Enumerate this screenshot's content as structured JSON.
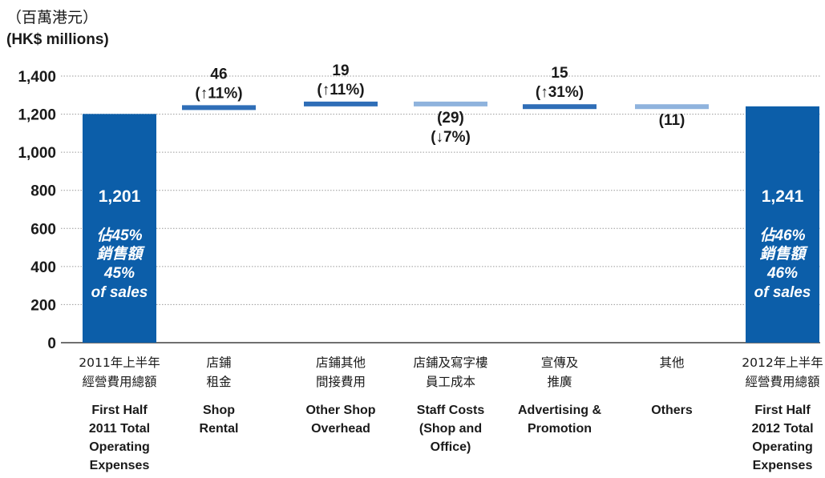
{
  "unit_label_zh": "（百萬港元）",
  "unit_label_en": "(HK$ millions)",
  "colors": {
    "total": "#0c5ea9",
    "increase": "#2f6eb7",
    "decrease": "#8fb3dd",
    "text_on_bar": "#ffffff"
  },
  "chart_data": {
    "type": "bar",
    "subtype": "waterfall",
    "ylim": [
      0,
      1400
    ],
    "yticks": [
      0,
      200,
      400,
      600,
      800,
      1000,
      1200,
      1400
    ],
    "ytick_labels": [
      "0",
      "200",
      "400",
      "600",
      "800",
      "1,000",
      "1,200",
      "1,400"
    ],
    "grid": true,
    "bars": [
      {
        "kind": "total",
        "value": 1201,
        "value_label": "1,201",
        "inbar_lines": [
          "佔45%",
          "銷售額",
          "45%",
          "of sales"
        ],
        "label_zh": [
          "2011年上半年",
          "經營費用總額"
        ],
        "label_en": [
          "First Half",
          "2011 Total",
          "Operating",
          "Expenses"
        ]
      },
      {
        "kind": "increase",
        "value": 46,
        "delta_lines": [
          "46",
          "(↑11%)"
        ],
        "label_zh": [
          "店鋪",
          "租金"
        ],
        "label_en": [
          "Shop",
          "Rental"
        ]
      },
      {
        "kind": "increase",
        "value": 19,
        "delta_lines": [
          "19",
          "(↑11%)"
        ],
        "label_zh": [
          "店鋪其他",
          "間接費用"
        ],
        "label_en": [
          "Other Shop",
          "Overhead"
        ]
      },
      {
        "kind": "decrease",
        "value": -29,
        "delta_lines": [
          "(29)",
          "(↓7%)"
        ],
        "label_zh": [
          "店鋪及寫字樓",
          "員工成本"
        ],
        "label_en": [
          "Staff Costs",
          "(Shop and",
          "Office)"
        ]
      },
      {
        "kind": "increase",
        "value": 15,
        "delta_lines": [
          "15",
          "(↑31%)"
        ],
        "label_zh": [
          "宣傳及",
          "推廣"
        ],
        "label_en": [
          "Advertising &",
          "Promotion"
        ]
      },
      {
        "kind": "decrease",
        "value": -11,
        "delta_lines": [
          "(11)"
        ],
        "label_zh": [
          "其他"
        ],
        "label_en": [
          "Others"
        ]
      },
      {
        "kind": "total",
        "value": 1241,
        "value_label": "1,241",
        "inbar_lines": [
          "佔46%",
          "銷售額",
          "46%",
          "of sales"
        ],
        "label_zh": [
          "2012年上半年",
          "經營費用總額"
        ],
        "label_en": [
          "First Half",
          "2012 Total",
          "Operating",
          "Expenses"
        ]
      }
    ]
  }
}
